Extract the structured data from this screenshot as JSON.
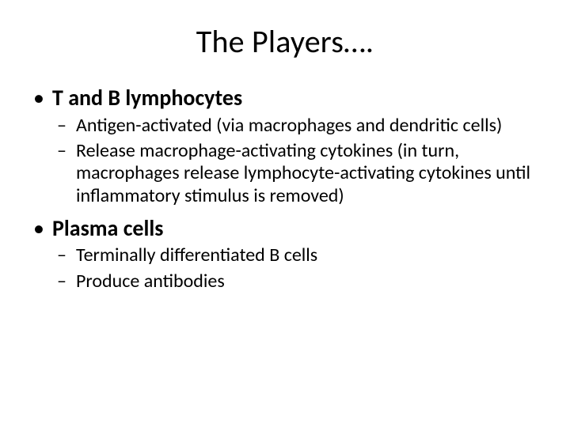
{
  "title": "The Players….",
  "bullets": [
    {
      "text": "T and B lymphocytes",
      "sub": [
        "Antigen-activated (via macrophages and dendritic cells)",
        "Release macrophage-activating cytokines (in turn, macrophages release lymphocyte-activating cytokines until inflammatory stimulus is removed)"
      ]
    },
    {
      "text": "Plasma cells",
      "sub": [
        "Terminally differentiated B cells",
        "Produce antibodies"
      ]
    }
  ],
  "style": {
    "background_color": "#ffffff",
    "text_color": "#000000",
    "title_fontsize": 40,
    "level1_fontsize": 28,
    "level1_fontweight": 700,
    "level2_fontsize": 24,
    "level2_fontweight": 400,
    "font_family": "Calibri"
  }
}
